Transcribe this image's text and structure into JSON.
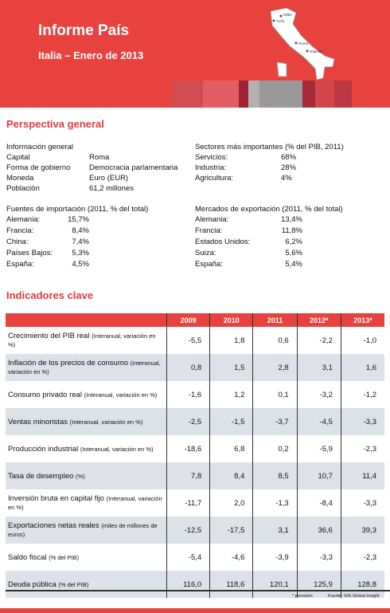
{
  "header": {
    "title": "Informe País",
    "subtitle": "Italia – Enero de 2013",
    "map_labels": [
      "Milán",
      "Turín",
      "Roma",
      "Nápoles"
    ]
  },
  "overview": {
    "title": "Perspectiva general",
    "general": {
      "heading": "Información general",
      "rows": [
        [
          "Capital",
          "Roma"
        ],
        [
          "Forma de gobierno",
          "Democracia parlamentaria"
        ],
        [
          "Moneda",
          "Euro (EUR)"
        ],
        [
          "Población",
          "61,2 millones"
        ]
      ]
    },
    "sectors": {
      "heading": "Sectores más importantes (% del PIB, 2011)",
      "rows": [
        [
          "Servicios:",
          "68%"
        ],
        [
          "Industria:",
          "28%"
        ],
        [
          "Agricultura:",
          "4%"
        ]
      ]
    },
    "imports": {
      "heading": "Fuentes de importación (2011, % del total)",
      "rows": [
        [
          "Alemania:",
          "15,7%"
        ],
        [
          "Francia:",
          "8,4%"
        ],
        [
          "China:",
          "7,4%"
        ],
        [
          "Países Bajos:",
          "5,3%"
        ],
        [
          "España:",
          "4,5%"
        ]
      ]
    },
    "exports": {
      "heading": "Mercados de exportación (2011, % del total)",
      "rows": [
        [
          "Alemania:",
          "13,4%"
        ],
        [
          "Francia:",
          "11,8%"
        ],
        [
          "Estados Unidos:",
          "6,2%"
        ],
        [
          "Suiza:",
          "5,6%"
        ],
        [
          "España:",
          "5,4%"
        ]
      ]
    }
  },
  "indicators": {
    "title": "Indicadores clave",
    "columns": [
      "2009",
      "2010",
      "2011",
      "2012*",
      "2013*"
    ],
    "rows": [
      {
        "label": "Crecimiento del PIB real",
        "note": "(Interanual, variación en %)",
        "values": [
          "-5,5",
          "1,8",
          "0,6",
          "-2,2",
          "-1,0"
        ]
      },
      {
        "label": "Inflación de los precios de consumo",
        "note": "(Interanual, variación en %)",
        "values": [
          "0,8",
          "1,5",
          "2,8",
          "3,1",
          "1,6"
        ]
      },
      {
        "label": "Consumo privado real",
        "note": "(Interanual, variación en %)",
        "values": [
          "-1,6",
          "1,2",
          "0,1",
          "-3,2",
          "-1,2"
        ]
      },
      {
        "label": "Ventas minoristas",
        "note": "(Interanual, variación en %)",
        "values": [
          "-2,5",
          "-1,5",
          "-3,7",
          "-4,5",
          "-3,3"
        ]
      },
      {
        "label": "Producción industrial",
        "note": "(Interanual, variación en %)",
        "values": [
          "-18,6",
          "6,8",
          "0,2",
          "-5,9",
          "-2,3"
        ]
      },
      {
        "label": "Tasa de desempleo",
        "note": "(%)",
        "values": [
          "7,8",
          "8,4",
          "8,5",
          "10,7",
          "11,4"
        ]
      },
      {
        "label": "Inversión bruta en capital fijo",
        "note": "(Interanual, variación en %)",
        "values": [
          "-11,7",
          "2,0",
          "-1,3",
          "-8,4",
          "-3,3"
        ]
      },
      {
        "label": "Exportaciones netas reales",
        "note": "(miles de millones de euros)",
        "values": [
          "-12,5",
          "-17,5",
          "3,1",
          "36,6",
          "39,3"
        ]
      },
      {
        "label": "Saldo fiscal",
        "note": "(% del PIB)",
        "values": [
          "-5,4",
          "-4,6",
          "-3,9",
          "-3,3",
          "-2,3"
        ]
      },
      {
        "label": "Deuda pública",
        "note": "(% del PIB)",
        "values": [
          "116,0",
          "118,6",
          "120,1",
          "125,9",
          "128,8"
        ]
      }
    ]
  },
  "footer": {
    "note": "* previsión",
    "source": "Fuente: IHS Global Insight"
  }
}
